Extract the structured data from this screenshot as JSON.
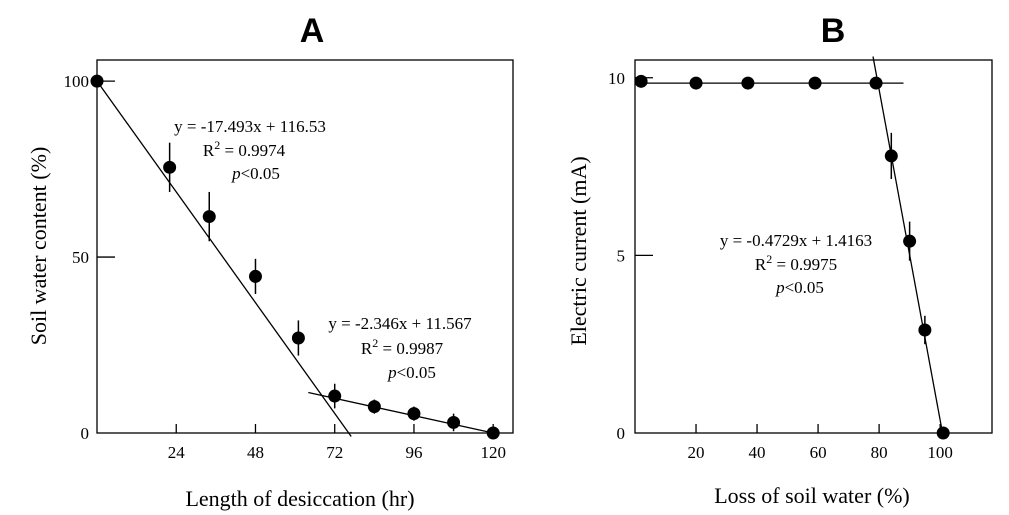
{
  "chart_data": [
    {
      "type": "scatter",
      "panel": "A",
      "xlabel": "Length of desiccation  (hr)",
      "ylabel": "Soil water content  (%)",
      "xlim": [
        0,
        126
      ],
      "ylim": [
        0,
        106
      ],
      "xticks": [
        24,
        48,
        72,
        96,
        120
      ],
      "yticks": [
        0,
        50,
        100
      ],
      "series": [
        {
          "x": [
            0,
            22,
            34,
            48,
            61,
            72,
            84,
            96,
            108,
            120
          ],
          "y": [
            100,
            75.5,
            61.5,
            44.5,
            27,
            10.5,
            7.5,
            5.5,
            3,
            0
          ],
          "err": [
            0,
            7,
            7,
            5,
            5,
            3.5,
            2,
            2,
            2.5,
            0
          ]
        }
      ],
      "fits": [
        {
          "from": [
            0,
            100
          ],
          "to": [
            77,
            -1
          ],
          "equation": "y = -17.493x + 116.53",
          "r2_base": "R",
          "r2_sup": "2",
          "r2_val": " = 0.9974",
          "p_italic": "p",
          "p_rest": "<0.05"
        },
        {
          "from": [
            64,
            11.5
          ],
          "to": [
            120,
            0
          ],
          "equation": "y = -2.346x + 11.567",
          "r2_base": "R",
          "r2_sup": "2",
          "r2_val": " = 0.9987",
          "p_italic": "p",
          "p_rest": "<0.05"
        }
      ]
    },
    {
      "type": "scatter",
      "panel": "B",
      "xlabel": "Loss of soil water   (%)",
      "ylabel": "Electric current (mA)",
      "xlim": [
        0,
        117
      ],
      "ylim": [
        0,
        10.5
      ],
      "xticks": [
        20,
        40,
        60,
        80,
        100
      ],
      "yticks": [
        0,
        5,
        10
      ],
      "series": [
        {
          "x": [
            2,
            20,
            37,
            59,
            79,
            84,
            90,
            95,
            101
          ],
          "y": [
            9.9,
            9.85,
            9.85,
            9.85,
            9.85,
            7.8,
            5.4,
            2.9,
            0
          ],
          "err": [
            0,
            0,
            0,
            0,
            0,
            0.65,
            0.55,
            0.4,
            0
          ]
        }
      ],
      "fits": [
        {
          "from": [
            0,
            9.85
          ],
          "to": [
            88,
            9.85
          ]
        },
        {
          "from": [
            78,
            10.6
          ],
          "to": [
            101,
            -0.1
          ],
          "equation": "y = -0.4729x + 1.4163",
          "r2_base": "R",
          "r2_sup": "2",
          "r2_val": " = 0.9975",
          "p_italic": "p",
          "p_rest": "<0.05"
        }
      ]
    }
  ]
}
